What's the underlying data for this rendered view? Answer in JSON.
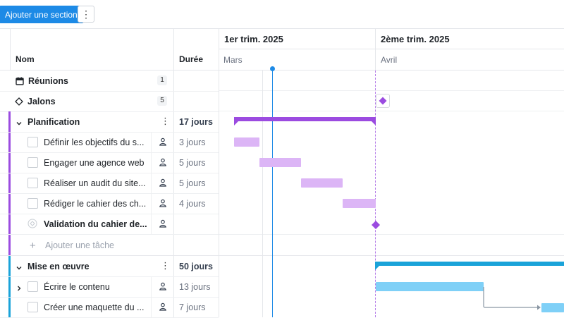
{
  "toolbar": {
    "add_section_label": "Ajouter une section",
    "more_label": "⋮"
  },
  "grid": {
    "header_name": "Nom",
    "header_duration": "Durée"
  },
  "rows": {
    "reunions": {
      "label": "Réunions",
      "count": "1"
    },
    "jalons": {
      "label": "Jalons",
      "count": "5"
    },
    "planification": {
      "label": "Planification",
      "duration": "17 jours",
      "menu": "⋮"
    },
    "t1": {
      "label": "Définir les objectifs du s...",
      "duration": "3 jours"
    },
    "t2": {
      "label": "Engager une agence web",
      "duration": "5 jours"
    },
    "t3": {
      "label": "Réaliser un audit du site...",
      "duration": "5 jours"
    },
    "t4": {
      "label": "Rédiger le cahier des ch...",
      "duration": "4 jours"
    },
    "t5": {
      "label": "Validation du cahier de..."
    },
    "add_task": {
      "label": "Ajouter une tâche"
    },
    "mise_en_oeuvre": {
      "label": "Mise en œuvre",
      "duration": "50 jours",
      "menu": "⋮"
    },
    "t6": {
      "label": "Écrire le contenu",
      "duration": "13 jours"
    },
    "t7": {
      "label": "Créer une maquette du ...",
      "duration": "7 jours"
    }
  },
  "timeline": {
    "quarter_1": "1er trim. 2025",
    "quarter_2": "2ème trim. 2025",
    "month_1": "Mars",
    "month_2": "Avril"
  },
  "colors": {
    "primary_button": "#1d8ae6",
    "planification_accent": "#9b4be0",
    "planification_task": "#dcb5f6",
    "mise_en_oeuvre_accent": "#1aa3d9",
    "mise_en_oeuvre_task": "#7fd0f7",
    "today_line": "#1d8ae6"
  }
}
